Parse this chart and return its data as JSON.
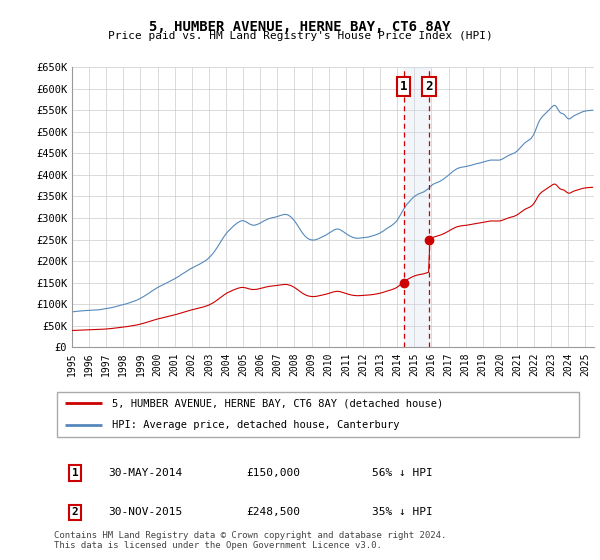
{
  "title": "5, HUMBER AVENUE, HERNE BAY, CT6 8AY",
  "subtitle": "Price paid vs. HM Land Registry's House Price Index (HPI)",
  "ylim": [
    0,
    650000
  ],
  "yticks": [
    0,
    50000,
    100000,
    150000,
    200000,
    250000,
    300000,
    350000,
    400000,
    450000,
    500000,
    550000,
    600000,
    650000
  ],
  "ytick_labels": [
    "£0",
    "£50K",
    "£100K",
    "£150K",
    "£200K",
    "£250K",
    "£300K",
    "£350K",
    "£400K",
    "£450K",
    "£500K",
    "£550K",
    "£600K",
    "£650K"
  ],
  "xlim_start": 1995.0,
  "xlim_end": 2025.5,
  "hpi_color": "#5588bb",
  "house_color": "#cc0000",
  "vline_color": "#cc0000",
  "shade_color": "#ccddee",
  "legend_label_house": "5, HUMBER AVENUE, HERNE BAY, CT6 8AY (detached house)",
  "legend_label_hpi": "HPI: Average price, detached house, Canterbury",
  "sale1_date": 2014.37,
  "sale1_price": 150000,
  "sale2_date": 2015.87,
  "sale2_price": 248500,
  "table_rows": [
    {
      "num": "1",
      "date": "30-MAY-2014",
      "price": "£150,000",
      "pct": "56% ↓ HPI"
    },
    {
      "num": "2",
      "date": "30-NOV-2015",
      "price": "£248,500",
      "pct": "35% ↓ HPI"
    }
  ],
  "copyright": "Contains HM Land Registry data © Crown copyright and database right 2024.\nThis data is licensed under the Open Government Licence v3.0."
}
